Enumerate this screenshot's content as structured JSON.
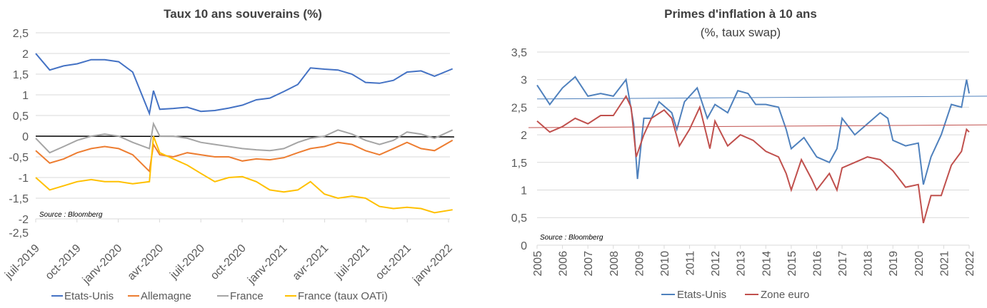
{
  "chart_data": [
    {
      "type": "line",
      "title": "Taux 10 ans souverains (%)",
      "source": "Source : Bloomberg",
      "ylim": [
        -2.5,
        2.5
      ],
      "yticks": [
        "2,5",
        "2",
        "1,5",
        "1",
        "0,5",
        "0",
        "-0,5",
        "-1",
        "-1,5",
        "-2",
        "-2,5"
      ],
      "xticks": [
        "juil-2019",
        "oct-2019",
        "janv-2020",
        "avr-2020",
        "juil-2020",
        "oct-2020",
        "janv-2021",
        "avr-2021",
        "juil-2021",
        "oct-2021",
        "janv-2022"
      ],
      "grid": true,
      "legend": "bottom",
      "x": [
        "2019-07-01",
        "2019-08-01",
        "2019-09-01",
        "2019-10-01",
        "2019-11-01",
        "2019-12-01",
        "2020-01-01",
        "2020-02-01",
        "2020-03-09",
        "2020-03-18",
        "2020-04-01",
        "2020-05-01",
        "2020-06-01",
        "2020-07-01",
        "2020-08-01",
        "2020-09-01",
        "2020-10-01",
        "2020-11-01",
        "2020-12-01",
        "2021-01-01",
        "2021-02-01",
        "2021-03-01",
        "2021-04-01",
        "2021-05-01",
        "2021-06-01",
        "2021-07-01",
        "2021-08-01",
        "2021-09-01",
        "2021-10-01",
        "2021-11-01",
        "2021-12-01",
        "2022-01-10"
      ],
      "series": [
        {
          "name": "Etats-Unis",
          "color": "#4472c4",
          "values": [
            2.0,
            1.6,
            1.7,
            1.75,
            1.85,
            1.85,
            1.8,
            1.55,
            0.55,
            1.1,
            0.65,
            0.67,
            0.7,
            0.6,
            0.62,
            0.68,
            0.75,
            0.88,
            0.92,
            1.08,
            1.25,
            1.65,
            1.62,
            1.6,
            1.5,
            1.3,
            1.28,
            1.35,
            1.55,
            1.58,
            1.45,
            1.63
          ]
        },
        {
          "name": "Allemagne",
          "color": "#ed7d31",
          "values": [
            -0.35,
            -0.65,
            -0.55,
            -0.4,
            -0.3,
            -0.25,
            -0.3,
            -0.45,
            -0.85,
            -0.2,
            -0.45,
            -0.5,
            -0.4,
            -0.45,
            -0.5,
            -0.5,
            -0.6,
            -0.55,
            -0.57,
            -0.52,
            -0.4,
            -0.3,
            -0.25,
            -0.15,
            -0.2,
            -0.35,
            -0.45,
            -0.3,
            -0.15,
            -0.3,
            -0.35,
            -0.1
          ]
        },
        {
          "name": "France",
          "color": "#a5a5a5",
          "values": [
            -0.05,
            -0.4,
            -0.25,
            -0.1,
            0.0,
            0.05,
            0.0,
            -0.15,
            -0.3,
            0.3,
            0.0,
            0.0,
            -0.05,
            -0.15,
            -0.2,
            -0.25,
            -0.3,
            -0.33,
            -0.35,
            -0.3,
            -0.15,
            -0.05,
            0.0,
            0.15,
            0.05,
            -0.1,
            -0.2,
            -0.1,
            0.1,
            0.05,
            -0.05,
            0.15
          ]
        },
        {
          "name": "France (taux OATi)",
          "color": "#ffc000",
          "values": [
            -1.0,
            -1.3,
            -1.2,
            -1.1,
            -1.05,
            -1.1,
            -1.1,
            -1.15,
            -1.1,
            0.0,
            -0.4,
            -0.55,
            -0.7,
            -0.9,
            -1.1,
            -1.0,
            -0.98,
            -1.1,
            -1.3,
            -1.35,
            -1.3,
            -1.1,
            -1.4,
            -1.5,
            -1.45,
            -1.5,
            -1.7,
            -1.75,
            -1.72,
            -1.75,
            -1.85,
            -1.78
          ]
        }
      ]
    },
    {
      "type": "line",
      "title": "Primes d'inflation à 10 ans",
      "subtitle": "(%, taux swap)",
      "source": "Source : Bloomberg",
      "ylim": [
        0,
        3.5
      ],
      "yticks": [
        "3,5",
        "3",
        "2,5",
        "2",
        "1,5",
        "1",
        "0,5",
        "0"
      ],
      "xticks": [
        "2005",
        "2006",
        "2007",
        "2008",
        "2009",
        "2010",
        "2011",
        "2012",
        "2013",
        "2014",
        "2015",
        "2016",
        "2017",
        "2018",
        "2019",
        "2020",
        "2021",
        "2022"
      ],
      "xlim": [
        2005,
        2022
      ],
      "grid": true,
      "legend": "bottom",
      "series": [
        {
          "name": "Etats-Unis",
          "color": "#4f81bd",
          "x": [
            2005,
            2005.5,
            2006,
            2006.5,
            2007,
            2007.5,
            2008,
            2008.5,
            2008.8,
            2008.95,
            2009.2,
            2009.5,
            2009.8,
            2010.3,
            2010.5,
            2010.8,
            2011.3,
            2011.7,
            2012,
            2012.5,
            2012.9,
            2013.3,
            2013.6,
            2014,
            2014.5,
            2014.8,
            2015,
            2015.5,
            2016,
            2016.5,
            2016.8,
            2017,
            2017.5,
            2018,
            2018.5,
            2018.8,
            2019,
            2019.5,
            2020,
            2020.2,
            2020.5,
            2020.9,
            2021.3,
            2021.7,
            2021.9,
            2022
          ],
          "values": [
            2.9,
            2.55,
            2.85,
            3.05,
            2.7,
            2.75,
            2.7,
            3.0,
            2.2,
            1.2,
            2.3,
            2.3,
            2.6,
            2.4,
            2.1,
            2.6,
            2.85,
            2.3,
            2.55,
            2.4,
            2.8,
            2.75,
            2.55,
            2.55,
            2.5,
            2.1,
            1.75,
            1.95,
            1.6,
            1.5,
            1.75,
            2.3,
            2.0,
            2.2,
            2.4,
            2.3,
            1.9,
            1.8,
            1.85,
            1.1,
            1.6,
            2.0,
            2.55,
            2.5,
            3.0,
            2.75
          ],
          "trend": [
            2.65,
            2.7
          ]
        },
        {
          "name": "Zone euro",
          "color": "#c0504d",
          "x": [
            2005,
            2005.5,
            2006,
            2006.5,
            2007,
            2007.5,
            2008,
            2008.5,
            2008.7,
            2008.9,
            2009.2,
            2009.5,
            2010,
            2010.3,
            2010.6,
            2011,
            2011.4,
            2011.8,
            2012,
            2012.5,
            2013,
            2013.5,
            2014,
            2014.5,
            2014.8,
            2015,
            2015.4,
            2015.8,
            2016,
            2016.5,
            2016.8,
            2017,
            2017.5,
            2018,
            2018.5,
            2019,
            2019.5,
            2020,
            2020.2,
            2020.5,
            2020.9,
            2021.3,
            2021.7,
            2021.9,
            2022
          ],
          "values": [
            2.25,
            2.05,
            2.15,
            2.3,
            2.2,
            2.35,
            2.35,
            2.7,
            2.5,
            1.6,
            2.0,
            2.3,
            2.45,
            2.3,
            1.8,
            2.1,
            2.5,
            1.75,
            2.25,
            1.8,
            2.0,
            1.9,
            1.7,
            1.6,
            1.3,
            1.0,
            1.55,
            1.2,
            1.0,
            1.3,
            1.0,
            1.4,
            1.5,
            1.6,
            1.55,
            1.35,
            1.05,
            1.1,
            0.4,
            0.9,
            0.9,
            1.45,
            1.7,
            2.1,
            2.05
          ],
          "trend": [
            2.13,
            2.18
          ]
        }
      ]
    }
  ]
}
